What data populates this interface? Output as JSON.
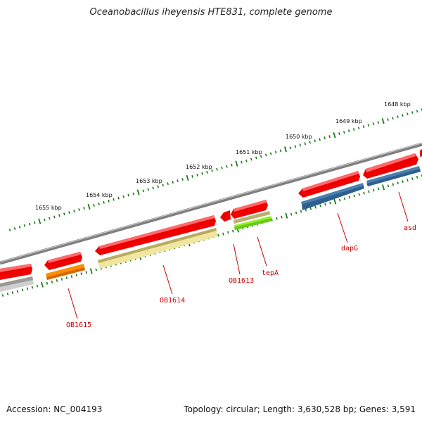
{
  "title": "Oceanobacillus iheyensis HTE831, complete genome",
  "footer": {
    "accession": "Accession: NC_004193",
    "summary": "Topology: circular; Length: 3,630,528 bp; Genes: 3,591"
  },
  "kbp_labels": [
    "1648 kbp",
    "1649 kbp",
    "1650 kbp",
    "1651 kbp",
    "1652 kbp",
    "1653 kbp",
    "1654 kbp",
    "1655 kbp"
  ],
  "gene_labels": [
    "asd",
    "dapG",
    "tepA",
    "OB1613",
    "OB1614",
    "OB1615"
  ],
  "colors": {
    "backbone": "#7f7f7f",
    "gene_red": "#ee0000",
    "tick": "#1a7a1a",
    "label": "#cc0000",
    "dapG_asd": "#4a7fb0",
    "tepA_upper": "#b8b070",
    "tepA_lower": "#99ee33",
    "OB1614": "#f0e6a0",
    "OB1615": "#ff8c00",
    "left_grey": "#b8b8b8"
  }
}
